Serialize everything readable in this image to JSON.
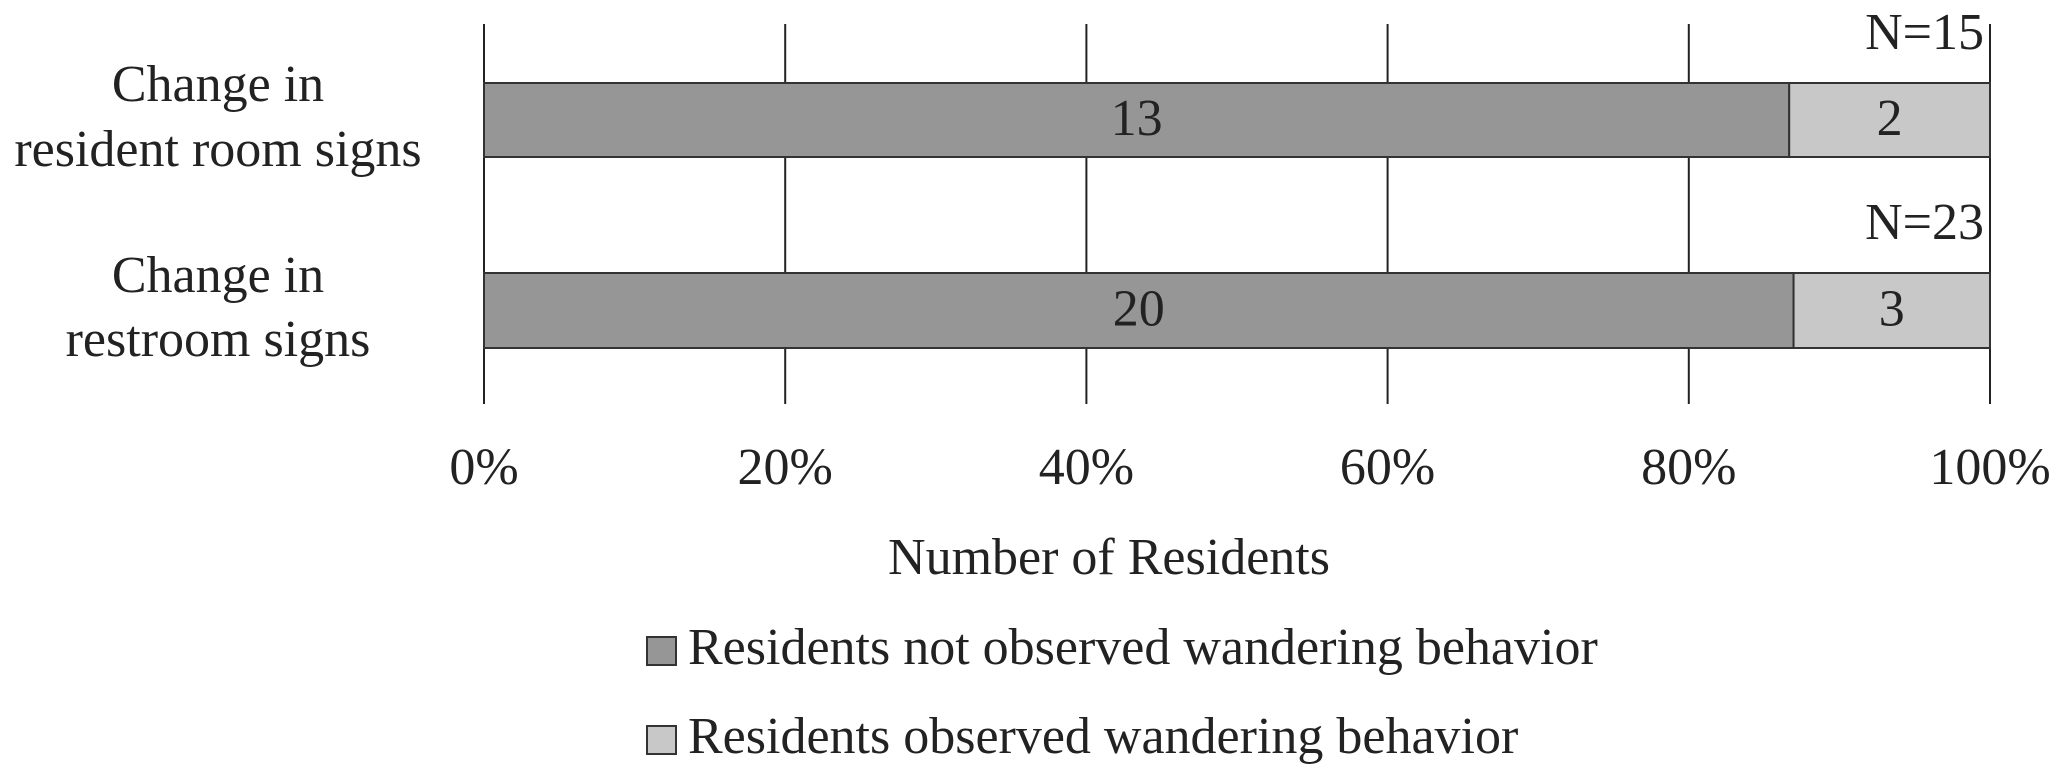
{
  "chart_data": {
    "type": "bar",
    "orientation": "horizontal",
    "stacked": "percent",
    "categories": [
      [
        "Change in",
        "resident room signs"
      ],
      [
        "Change in",
        "restroom signs"
      ]
    ],
    "series": [
      {
        "name": "Residents not observed wandering behavior",
        "color": "#969696",
        "values": [
          13,
          20
        ]
      },
      {
        "name": "Residents observed wandering behavior",
        "color": "#c8c8c8",
        "values": [
          2,
          3
        ]
      }
    ],
    "annotations": [
      "N=15",
      "N=23"
    ],
    "xlabel": "Number of Residents",
    "xlim": [
      0,
      100
    ],
    "xticks": [
      {
        "value": 0,
        "label": "0%"
      },
      {
        "value": 20,
        "label": "20%"
      },
      {
        "value": 40,
        "label": "40%"
      },
      {
        "value": 60,
        "label": "60%"
      },
      {
        "value": 80,
        "label": "80%"
      },
      {
        "value": 100,
        "label": "100%"
      }
    ],
    "grid": true,
    "legend": "bottom"
  }
}
